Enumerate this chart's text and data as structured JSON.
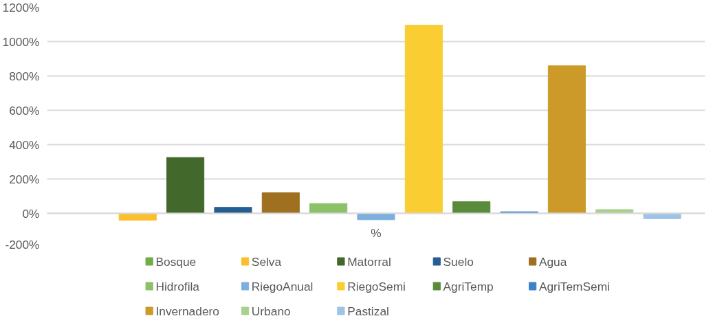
{
  "chart_data": {
    "type": "bar",
    "categories": [
      "%"
    ],
    "ylim": [
      -200,
      1200
    ],
    "yticks": [
      {
        "value": -200,
        "label": "-200%"
      },
      {
        "value": 0,
        "label": "0%"
      },
      {
        "value": 200,
        "label": "200%"
      },
      {
        "value": 400,
        "label": "400%"
      },
      {
        "value": 600,
        "label": "600%"
      },
      {
        "value": 800,
        "label": "800%"
      },
      {
        "value": 1000,
        "label": "1000%"
      },
      {
        "value": 1200,
        "label": "1200%"
      }
    ],
    "grid": "y",
    "legend": "bottom",
    "series": [
      {
        "name": "Bosque",
        "color": "#70ad47",
        "values": [
          0
        ]
      },
      {
        "name": "Selva",
        "color": "#fbbf2d",
        "values": [
          -40
        ]
      },
      {
        "name": "Matorral",
        "color": "#43682b",
        "values": [
          325
        ]
      },
      {
        "name": "Suelo",
        "color": "#255e91",
        "values": [
          35
        ]
      },
      {
        "name": "Agua",
        "color": "#9e7020",
        "values": [
          120
        ]
      },
      {
        "name": "Hidrofila",
        "color": "#8cc168",
        "values": [
          57
        ]
      },
      {
        "name": "RiegoAnual",
        "color": "#7cafdd",
        "values": [
          -37
        ]
      },
      {
        "name": "RiegoSemi",
        "color": "#facd33",
        "values": [
          1095
        ]
      },
      {
        "name": "AgriTemp",
        "color": "#5a8b3b",
        "values": [
          68
        ]
      },
      {
        "name": "AgriTemSemi",
        "color": "#3f80c8",
        "values": [
          9
        ]
      },
      {
        "name": "Invernadero",
        "color": "#cc9a28",
        "values": [
          859
        ]
      },
      {
        "name": "Urbano",
        "color": "#a9d18e",
        "values": [
          22
        ]
      },
      {
        "name": "Pastizal",
        "color": "#9dc3e6",
        "values": [
          -31
        ]
      }
    ]
  }
}
